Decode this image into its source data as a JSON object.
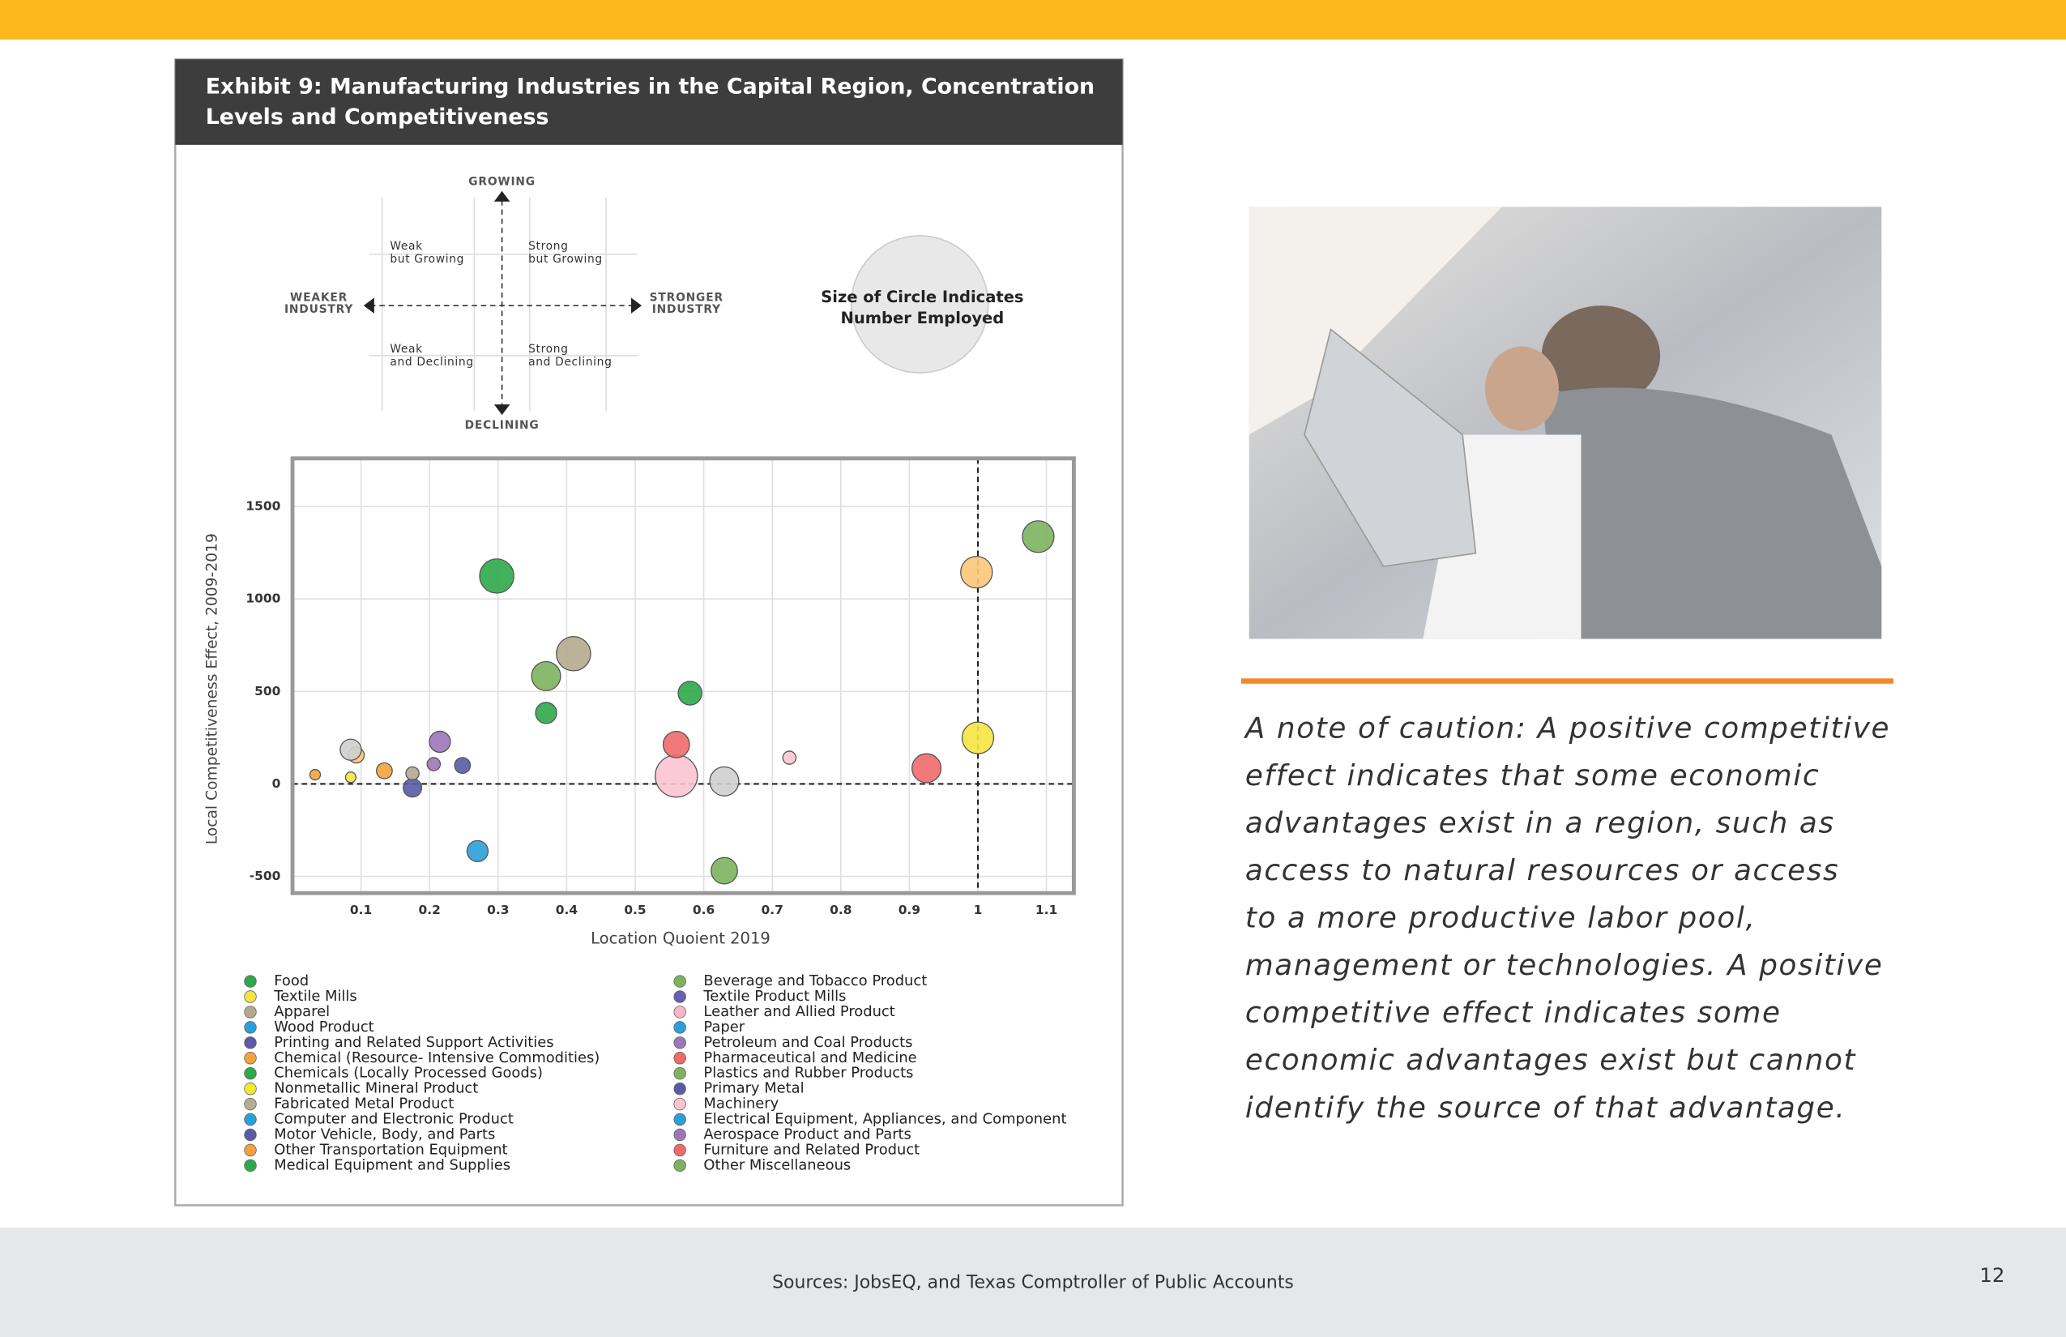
{
  "header": {
    "title": "Exhibit 9: Manufacturing Industries in the Capital Region, Concentration Levels and Competitiveness"
  },
  "quadrant_key": {
    "top": "GROWING",
    "bottom": "DECLINING",
    "left": [
      "WEAKER",
      "INDUSTRY"
    ],
    "right": [
      "STRONGER",
      "INDUSTRY"
    ],
    "quadrants": [
      [
        "Weak",
        "but Growing"
      ],
      [
        "Strong",
        "but Growing"
      ],
      [
        "Weak",
        "and Declining"
      ],
      [
        "Strong",
        "and Declining"
      ]
    ]
  },
  "size_key": [
    "Size of Circle Indicates",
    "Number Employed"
  ],
  "chart_data": {
    "type": "bubble",
    "x_label": "Location Quoient 2019",
    "y_label": "Local Competitiveness Effect, 2009-2019",
    "xlim": [
      0,
      1.14
    ],
    "ylim": [
      -590,
      1760
    ],
    "xticks": [
      0.1,
      0.2,
      0.3,
      0.4,
      0.5,
      0.6,
      0.7,
      0.8,
      0.9,
      1,
      1.1
    ],
    "yticks": [
      -500,
      0,
      500,
      1000,
      1500
    ],
    "grid": true,
    "reference_lines": {
      "x": 1,
      "y": 0
    },
    "points": {
      "x": [
        1.088,
        0.998,
        1.0,
        0.925,
        0.725,
        0.63,
        0.63,
        0.56,
        0.56,
        0.58,
        0.41,
        0.37,
        0.37,
        0.298,
        0.27,
        0.248,
        0.215,
        0.206,
        0.175,
        0.175,
        0.134,
        0.093,
        0.085,
        0.085,
        0.033
      ],
      "y": [
        1337,
        1145,
        249,
        85,
        142,
        14,
        -469,
        43,
        213,
        491,
        704,
        583,
        384,
        1124,
        -363,
        100,
        228,
        107,
        -21,
        57,
        71,
        156,
        185,
        36,
        50
      ],
      "size": [
        144,
        144,
        144,
        121,
        25,
        121,
        100,
        256,
        100,
        81,
        169,
        121,
        64,
        169,
        64,
        36,
        64,
        25,
        49,
        25,
        36,
        36,
        64,
        16,
        16
      ],
      "colors": [
        "#7db35e",
        "#fcc77a",
        "#f5e642",
        "#f06a6a",
        "#f9c4d1",
        "#cfcfcf",
        "#7db35e",
        "#f9c4d1",
        "#f06a6a",
        "#2ea84a",
        "#b5a88e",
        "#7db35e",
        "#2ea84a",
        "#2ea84a",
        "#2b9fd9",
        "#5b5aa8",
        "#9c77b8",
        "#9c77b8",
        "#5a5aa6",
        "#b5a88e",
        "#f4a23c",
        "#fcc77a",
        "#cfcfcf",
        "#f5e642",
        "#f4a23c"
      ]
    },
    "legend_items": [
      {
        "name": "Food",
        "color": "#2ea84a"
      },
      {
        "name": "Textile Mills",
        "color": "#f5e642"
      },
      {
        "name": "Apparel",
        "color": "#b5a88e"
      },
      {
        "name": "Wood Product",
        "color": "#2b9fd9"
      },
      {
        "name": "Printing and Related Support Activities",
        "color": "#5b5aa8"
      },
      {
        "name": "Chemical (Resource- Intensive Commodities)",
        "color": "#f4a23c"
      },
      {
        "name": "Chemicals (Locally Processed Goods)",
        "color": "#2ea84a"
      },
      {
        "name": "Nonmetallic Mineral Product",
        "color": "#f2ea30"
      },
      {
        "name": "Fabricated Metal Product",
        "color": "#b8ad90"
      },
      {
        "name": "Computer and Electronic Product",
        "color": "#2b9fd9"
      },
      {
        "name": "Motor Vehicle, Body, and Parts",
        "color": "#5a5aa6"
      },
      {
        "name": "Other Transportation Equipment",
        "color": "#f4a23c"
      },
      {
        "name": "Medical Equipment and Supplies",
        "color": "#2ea84a"
      },
      {
        "name": "Beverage and Tobacco Product",
        "color": "#7db35e"
      },
      {
        "name": "Textile Product Mills",
        "color": "#6760b0"
      },
      {
        "name": "Leather and Allied Product",
        "color": "#f7b7c8"
      },
      {
        "name": "Paper",
        "color": "#2b9fd9"
      },
      {
        "name": "Petroleum and Coal Products",
        "color": "#9c77b8"
      },
      {
        "name": "Pharmaceutical and Medicine",
        "color": "#f06a6a"
      },
      {
        "name": "Plastics and Rubber Products",
        "color": "#7db35e"
      },
      {
        "name": "Primary Metal",
        "color": "#5a5aa6"
      },
      {
        "name": "Machinery",
        "color": "#f9c4d1"
      },
      {
        "name": "Electrical Equipment, Appliances, and Component",
        "color": "#2b9fd9"
      },
      {
        "name": "Aerospace Product and Parts",
        "color": "#9c77b8"
      },
      {
        "name": "Furniture and Related Product",
        "color": "#f06a6a"
      },
      {
        "name": "Other Miscellaneous",
        "color": "#7db35e"
      }
    ]
  },
  "note": {
    "lines": [
      "A note of caution: A positive competitive",
      "effect indicates that some economic",
      "advantages exist in a region, such as",
      "access to natural resources or access",
      "to a more productive labor pool,",
      "management or technologies. A positive",
      "competitive effect indicates some",
      "economic advantages exist but cannot",
      "identify the source of that advantage."
    ]
  },
  "footer": {
    "source": "Sources: JobsEQ, and Texas Comptroller of Public Accounts",
    "page": "12"
  }
}
